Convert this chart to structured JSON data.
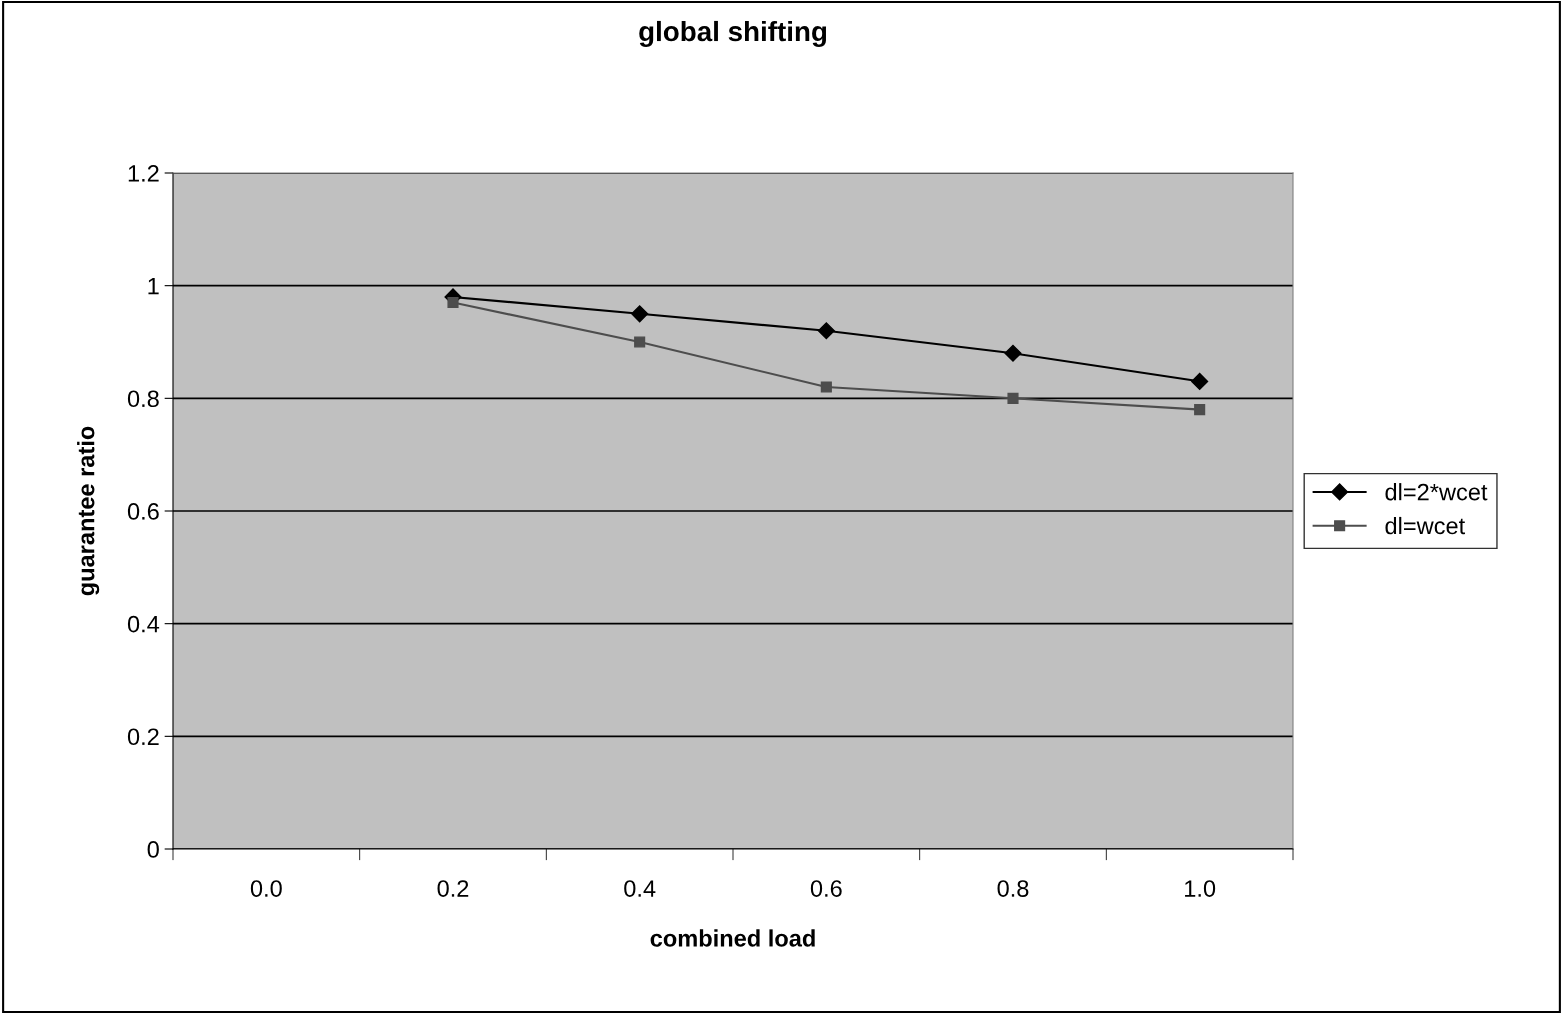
{
  "chart_data": {
    "type": "line",
    "title": "global shifting",
    "xlabel": "combined load",
    "ylabel": "guarantee ratio",
    "categories": [
      "0.0",
      "0.2",
      "0.4",
      "0.6",
      "0.8",
      "1.0"
    ],
    "series": [
      {
        "name": "dl=2*wcet",
        "color": "#000000",
        "marker": "diamond",
        "values": [
          null,
          0.98,
          0.95,
          0.92,
          0.88,
          0.83
        ]
      },
      {
        "name": "dl=wcet",
        "color": "#4d4d4d",
        "marker": "square",
        "values": [
          null,
          0.97,
          0.9,
          0.82,
          0.8,
          0.78
        ]
      }
    ],
    "ylim": [
      0,
      1.2
    ],
    "yticks": [
      0,
      0.2,
      0.4,
      0.6,
      0.8,
      1,
      1.2
    ],
    "grid": "y",
    "legend": "right",
    "line_style": "solid"
  }
}
